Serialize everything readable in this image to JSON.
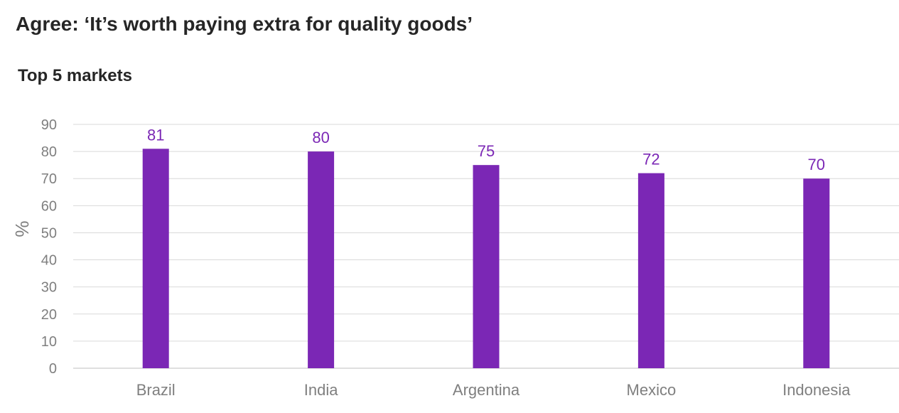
{
  "chart_data": {
    "type": "bar",
    "title": "Agree: ‘It’s worth paying extra for quality goods’",
    "subtitle": "Top 5 markets",
    "xlabel": "",
    "ylabel": "%",
    "categories": [
      "Brazil",
      "India",
      "Argentina",
      "Mexico",
      "Indonesia"
    ],
    "values": [
      81,
      80,
      75,
      72,
      70
    ],
    "ylim": [
      0,
      90
    ],
    "yticks": [
      0,
      10,
      20,
      30,
      40,
      50,
      60,
      70,
      80,
      90
    ],
    "grid": true,
    "legend": "none",
    "bar_color": "#7b27b5",
    "data_label_color": "#7b27b5",
    "grid_color": "#d9d9d9",
    "axis_text_color": "#7f7f7f"
  }
}
